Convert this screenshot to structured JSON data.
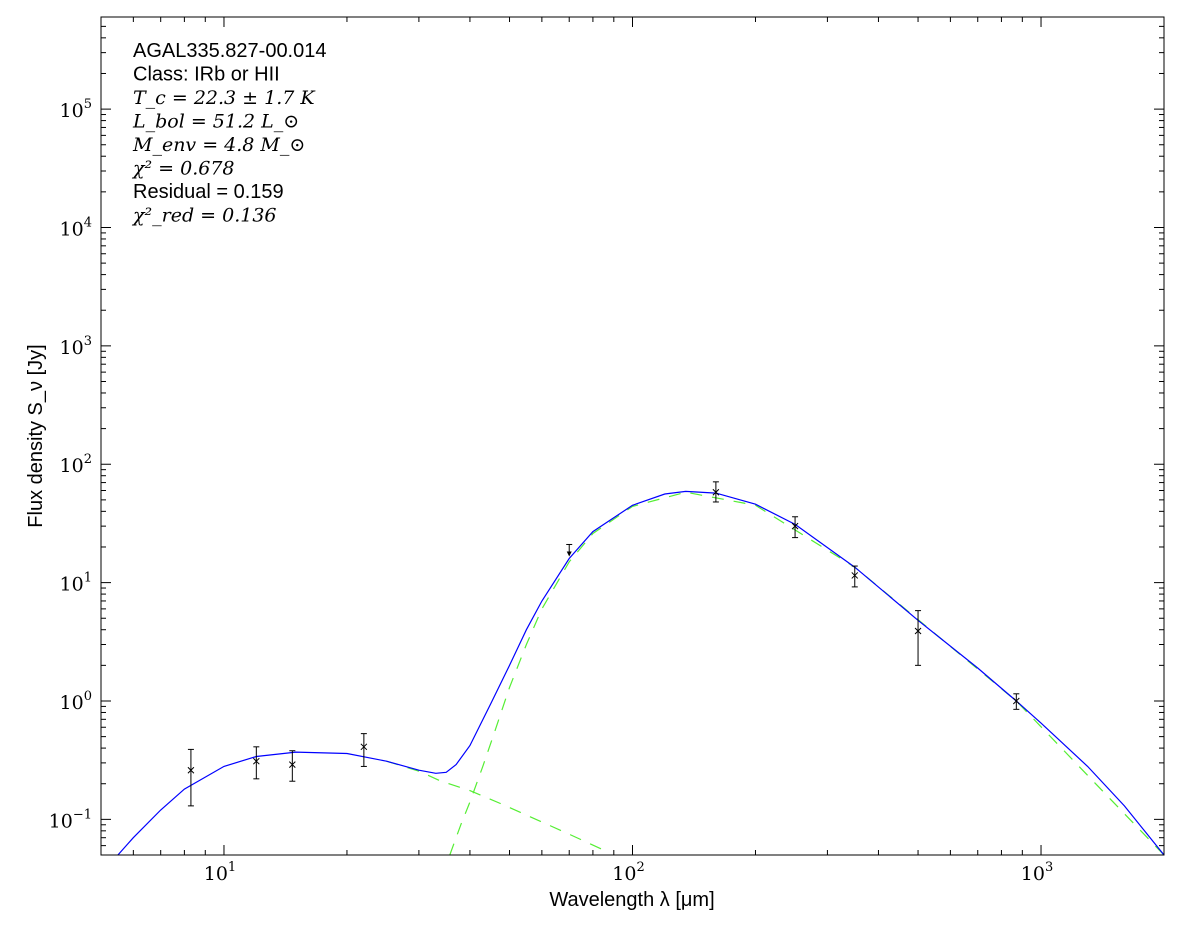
{
  "chart_data": {
    "type": "line",
    "xlabel": "Wavelength λ [μm]",
    "ylabel": "Flux density S_ν [Jy]",
    "xscale": "log",
    "yscale": "log",
    "xlim": [
      5,
      2000
    ],
    "ylim": [
      0.05,
      600000
    ],
    "grid": false,
    "x_ticks": [
      10,
      100,
      1000
    ],
    "y_ticks": [
      0.1,
      1,
      10,
      100,
      1000,
      10000,
      100000
    ],
    "annotations": [
      "AGAL335.827-00.014",
      "Class: IRb or HII",
      "T_c = 22.3 ± 1.7 K",
      "L_bol = 51.2 L_⊙",
      "M_env = 4.8 M_⊙",
      "χ² = 0.678",
      "Residual = 0.159",
      "χ²_red = 0.136"
    ],
    "points": [
      {
        "x": 8.3,
        "y": 0.26,
        "lo": 0.13,
        "hi": 0.39
      },
      {
        "x": 12,
        "y": 0.31,
        "lo": 0.22,
        "hi": 0.41
      },
      {
        "x": 14.7,
        "y": 0.29,
        "lo": 0.21,
        "hi": 0.38
      },
      {
        "x": 22,
        "y": 0.41,
        "lo": 0.28,
        "hi": 0.53
      },
      {
        "x": 160,
        "y": 58,
        "lo": 48,
        "hi": 71
      },
      {
        "x": 250,
        "y": 30,
        "lo": 24,
        "hi": 36
      },
      {
        "x": 350,
        "y": 11.5,
        "lo": 9.2,
        "hi": 13.8
      },
      {
        "x": 500,
        "y": 3.9,
        "lo": 2.0,
        "hi": 5.8
      },
      {
        "x": 870,
        "y": 1.0,
        "lo": 0.85,
        "hi": 1.15
      }
    ],
    "upper_limits": [
      {
        "x": 70,
        "y": 21
      }
    ],
    "model_total": {
      "color": "#0000ff",
      "x": [
        5.5,
        6,
        7,
        8,
        10,
        12,
        15,
        20,
        25,
        30,
        33,
        35,
        37,
        40,
        45,
        50,
        55,
        60,
        70,
        80,
        100,
        120,
        135,
        160,
        200,
        250,
        350,
        500,
        700,
        870,
        1000,
        1300,
        1600,
        2000
      ],
      "y": [
        0.05,
        0.07,
        0.12,
        0.18,
        0.28,
        0.34,
        0.37,
        0.36,
        0.31,
        0.26,
        0.245,
        0.25,
        0.29,
        0.42,
        0.95,
        2.0,
        4.0,
        7.0,
        16,
        27,
        45,
        56,
        59,
        57,
        46,
        31,
        13.5,
        4.8,
        1.9,
        1.0,
        0.65,
        0.28,
        0.13,
        0.05
      ]
    },
    "model_warm": {
      "color": "#55ee33",
      "x": [
        25,
        30,
        34,
        40,
        48,
        60,
        70,
        85
      ],
      "y": [
        0.31,
        0.255,
        0.21,
        0.175,
        0.134,
        0.095,
        0.075,
        0.055
      ]
    },
    "model_cold": {
      "color": "#55ee33",
      "x": [
        35.7,
        38,
        40,
        43,
        46,
        50,
        55,
        60,
        70,
        80,
        100,
        135,
        200,
        350,
        870,
        2000
      ],
      "y": [
        0.05,
        0.09,
        0.14,
        0.28,
        0.55,
        1.3,
        3.0,
        6.0,
        15,
        26,
        44,
        58,
        45,
        13.5,
        1.0,
        0.05
      ]
    }
  }
}
